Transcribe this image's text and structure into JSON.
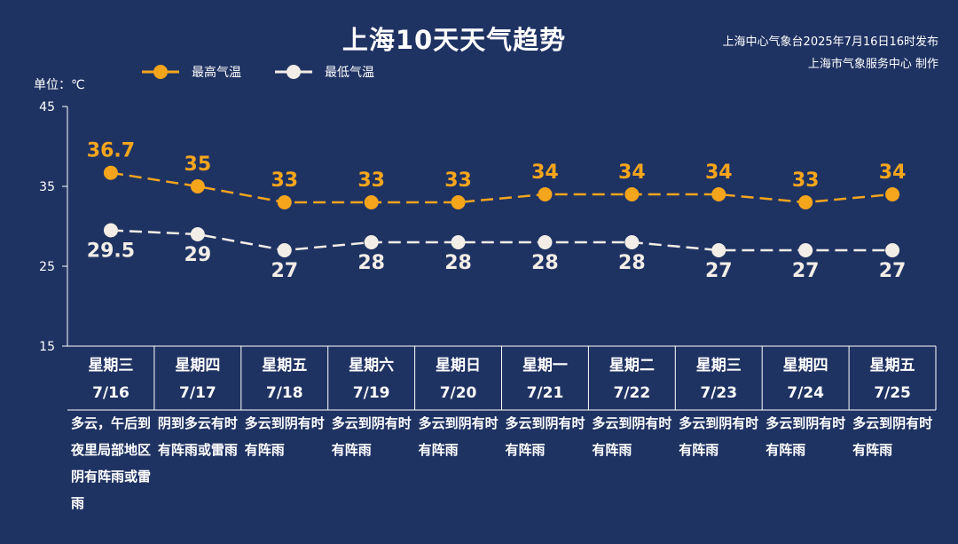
{
  "header": {
    "title": "上海10天天气趋势",
    "source_line1": "上海中心气象台2025年7月16日16时发布",
    "source_line2": "上海市气象服务中心 制作",
    "unit_label": "单位：℃"
  },
  "colors": {
    "background": "#1f3363",
    "high": "#f5a51c",
    "low": "#f2ede6",
    "axis": "#ffffff"
  },
  "chart_data": {
    "type": "line",
    "ylabel": "单位：℃",
    "ylim": [
      15,
      45
    ],
    "yticks": [
      "45",
      "35",
      "25",
      "15"
    ],
    "categories": [
      "7/16",
      "7/17",
      "7/18",
      "7/19",
      "7/20",
      "7/21",
      "7/22",
      "7/23",
      "7/24",
      "7/25"
    ],
    "weekdays": [
      "星期三",
      "星期四",
      "星期五",
      "星期六",
      "星期日",
      "星期一",
      "星期二",
      "星期三",
      "星期四",
      "星期五"
    ],
    "series": [
      {
        "name": "最高气温",
        "values": [
          36.7,
          35,
          33,
          33,
          33,
          34,
          34,
          34,
          33,
          34
        ],
        "labels": [
          "36.7",
          "35",
          "33",
          "33",
          "33",
          "34",
          "34",
          "34",
          "33",
          "34"
        ]
      },
      {
        "name": "最低气温",
        "values": [
          29.5,
          29,
          27,
          28,
          28,
          28,
          28,
          27,
          27,
          27
        ],
        "labels": [
          "29.5",
          "29",
          "27",
          "28",
          "28",
          "28",
          "28",
          "27",
          "27",
          "27"
        ]
      }
    ],
    "conditions": [
      "多云，午后到夜里局部地区阴有阵雨或雷雨",
      "阴到多云有时有阵雨或雷雨",
      "多云到阴有时有阵雨",
      "多云到阴有时有阵雨",
      "多云到阴有时有阵雨",
      "多云到阴有时有阵雨",
      "多云到阴有时有阵雨",
      "多云到阴有时有阵雨",
      "多云到阴有时有阵雨",
      "多云到阴有时有阵雨"
    ],
    "legend": "top-left",
    "grid": false
  }
}
